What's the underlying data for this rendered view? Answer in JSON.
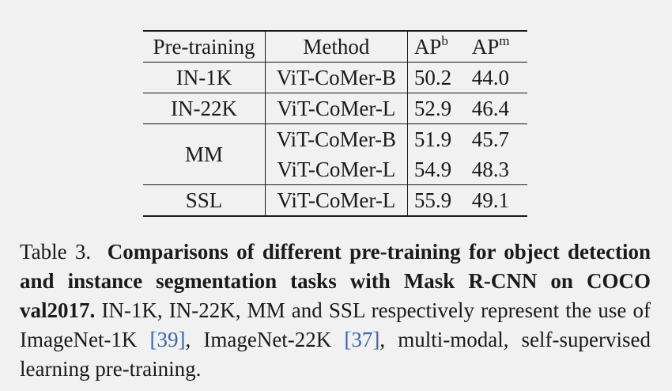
{
  "table": {
    "headers": {
      "pretraining": "Pre-training",
      "method": "Method",
      "apb_base": "AP",
      "apb_sup": "b",
      "apm_base": "AP",
      "apm_sup": "m"
    },
    "groups": [
      {
        "pretraining": "IN-1K",
        "rows": [
          {
            "method": "ViT-CoMer-B",
            "apb": "50.2",
            "apm": "44.0"
          }
        ]
      },
      {
        "pretraining": "IN-22K",
        "rows": [
          {
            "method": "ViT-CoMer-L",
            "apb": "52.9",
            "apm": "46.4"
          }
        ]
      },
      {
        "pretraining": "MM",
        "rows": [
          {
            "method": "ViT-CoMer-B",
            "apb": "51.9",
            "apm": "45.7"
          },
          {
            "method": "ViT-CoMer-L",
            "apb": "54.9",
            "apm": "48.3"
          }
        ]
      },
      {
        "pretraining": "SSL",
        "rows": [
          {
            "method": "ViT-CoMer-L",
            "apb": "55.9",
            "apm": "49.1"
          }
        ]
      }
    ]
  },
  "caption": {
    "label": "Table 3.",
    "bold": "Comparisons of different pre-training for object detection and instance segmentation tasks with Mask R-CNN on COCO val2017.",
    "text1": "IN-1K, IN-22K, MM and SSL respectively represent the use of ImageNet-1K",
    "cite1": "[39]",
    "text2": ", ImageNet-22K",
    "cite2": "[37]",
    "text3": ", multi-modal, self-supervised learning pre-training."
  }
}
